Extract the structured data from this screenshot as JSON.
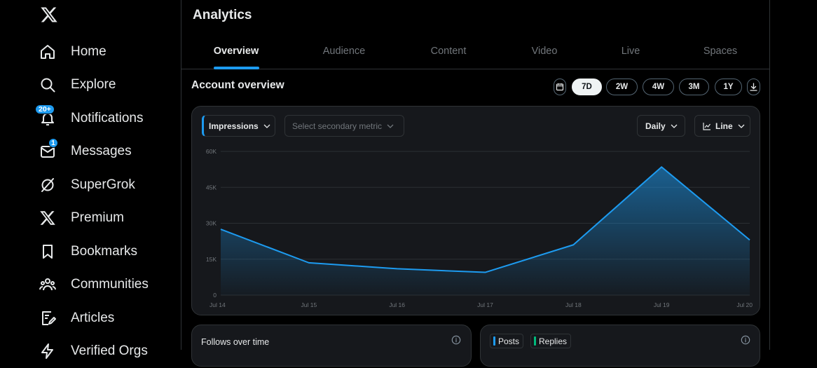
{
  "sidebar": {
    "items": [
      {
        "label": "Home",
        "icon": "home-icon"
      },
      {
        "label": "Explore",
        "icon": "search-icon"
      },
      {
        "label": "Notifications",
        "icon": "bell-icon",
        "badge": "20+"
      },
      {
        "label": "Messages",
        "icon": "envelope-icon",
        "badge": "1"
      },
      {
        "label": "SuperGrok",
        "icon": "grok-icon"
      },
      {
        "label": "Premium",
        "icon": "x-logo-icon"
      },
      {
        "label": "Bookmarks",
        "icon": "bookmark-icon"
      },
      {
        "label": "Communities",
        "icon": "communities-icon"
      },
      {
        "label": "Articles",
        "icon": "article-icon"
      },
      {
        "label": "Verified Orgs",
        "icon": "lightning-icon"
      }
    ]
  },
  "main": {
    "title": "Analytics",
    "tabs": [
      {
        "label": "Overview",
        "active": true
      },
      {
        "label": "Audience"
      },
      {
        "label": "Content"
      },
      {
        "label": "Video"
      },
      {
        "label": "Live"
      },
      {
        "label": "Spaces"
      }
    ],
    "section_title": "Account overview",
    "ranges": [
      "7D",
      "2W",
      "4W",
      "3M",
      "1Y"
    ],
    "selected_range": "7D"
  },
  "chart_card": {
    "primary_metric": "Impressions",
    "secondary_placeholder": "Select secondary metric",
    "granularity": "Daily",
    "chart_type_label": "Line"
  },
  "chart_data": {
    "type": "area",
    "categories": [
      "Jul 14",
      "Jul 15",
      "Jul 16",
      "Jul 17",
      "Jul 18",
      "Jul 19",
      "Jul 20"
    ],
    "series": [
      {
        "values": [
          27500,
          13500,
          11000,
          9500,
          21000,
          53500,
          23000
        ],
        "color": "#1d9bf0"
      }
    ],
    "yticks": [
      0,
      15000,
      30000,
      45000,
      60000
    ],
    "yticklabels": [
      "0",
      "15K",
      "30K",
      "45K",
      "60K"
    ],
    "ylim": [
      0,
      60000
    ],
    "grid": true,
    "title": "",
    "xlabel": "",
    "ylabel": ""
  },
  "follows_card": {
    "title": "Follows over time"
  },
  "posts_card": {
    "legend": [
      {
        "label": "Posts",
        "color": "#1d9bf0"
      },
      {
        "label": "Replies",
        "color": "#00ba7c"
      }
    ]
  },
  "colors": {
    "accent": "#1d9bf0",
    "background": "#000000",
    "card": "#16181c",
    "border": "#2f3336",
    "muted": "#71767b"
  }
}
